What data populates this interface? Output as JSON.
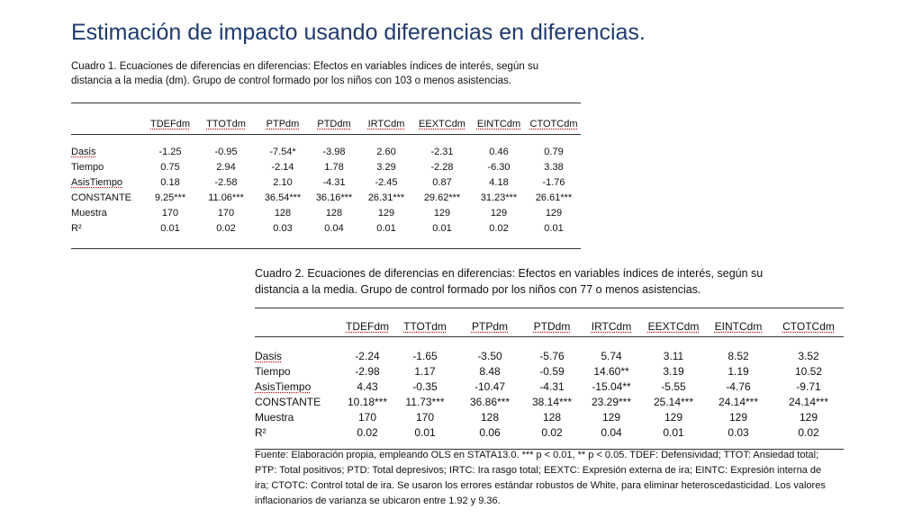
{
  "slide": {
    "title": "Estimación de impacto usando diferencias en diferencias."
  },
  "cuadro1": {
    "caption": "Cuadro 1. Ecuaciones de diferencias en diferencias: Efectos en variables índices de interés, según su\ndistancia a la media (dm). Grupo de control formado por los niños con 103 o menos asistencias.",
    "headers": [
      "",
      "TDEFdm",
      "TTOTdm",
      "PTPdm",
      "PTDdm",
      "IRTCdm",
      "EEXTCdm",
      "EINTCdm",
      "CTOTCdm"
    ],
    "rows": [
      [
        "Dasis",
        "-1.25",
        "-0.95",
        "-7.54*",
        "-3.98",
        "2.60",
        "-2.31",
        "0.46",
        "0.79"
      ],
      [
        "Tiempo",
        "0.75",
        "2.94",
        "-2.14",
        "1.78",
        "3.29",
        "-2.28",
        "-6.30",
        "3.38"
      ],
      [
        "AsisTiempo",
        "0.18",
        "-2.58",
        "2.10",
        "-4.31",
        "-2.45",
        "0.87",
        "4.18",
        "-1.76"
      ],
      [
        "CONSTANTE",
        "9.25***",
        "11.06***",
        "36.54***",
        "36.16***",
        "26.31***",
        "29.62***",
        "31.23***",
        "26.61***"
      ],
      [
        "Muestra",
        "170",
        "170",
        "128",
        "128",
        "129",
        "129",
        "129",
        "129"
      ],
      [
        "R²",
        "0.01",
        "0.02",
        "0.03",
        "0.04",
        "0.01",
        "0.01",
        "0.02",
        "0.01"
      ]
    ]
  },
  "cuadro2": {
    "caption": "Cuadro 2. Ecuaciones de diferencias en diferencias: Efectos en variables índices de interés, según su\ndistancia a la media. Grupo de control formado por los niños con 77 o menos asistencias.",
    "headers": [
      "",
      "TDEFdm",
      "TTOTdm",
      "PTPdm",
      "PTDdm",
      "IRTCdm",
      "EEXTCdm",
      "EINTCdm",
      "CTOTCdm"
    ],
    "rows": [
      [
        "Dasis",
        "-2.24",
        "-1.65",
        "-3.50",
        "-5.76",
        "5.74",
        "3.11",
        "8.52",
        "3.52"
      ],
      [
        "Tiempo",
        "-2.98",
        "1.17",
        "8.48",
        "-0.59",
        "14.60**",
        "3.19",
        "1.19",
        "10.52"
      ],
      [
        "AsisTiempo",
        "4.43",
        "-0.35",
        "-10.47",
        "-4.31",
        "-15.04**",
        "-5.55",
        "-4.76",
        "-9.71"
      ],
      [
        "CONSTANTE",
        "10.18***",
        "11.73***",
        "36.86***",
        "38.14***",
        "23.29***",
        "25.14***",
        "24.14***",
        "24.14***"
      ],
      [
        "Muestra",
        "170",
        "170",
        "128",
        "128",
        "129",
        "129",
        "129",
        "129"
      ],
      [
        "R²",
        "0.02",
        "0.01",
        "0.06",
        "0.02",
        "0.04",
        "0.01",
        "0.03",
        "0.02"
      ]
    ],
    "note": "Fuente: Elaboración propia, empleando OLS en STATA13.0. *** p < 0.01, ** p < 0.05. TDEF: Defensividad; TTOT: Ansiedad total; PTP: Total positivos; PTD: Total depresivos; IRTC: Ira rasgo total; EEXTC: Expresión externa de ira; EINTC: Expresión interna de ira; CTOTC: Control total de ira. Se usaron los errores estándar robustos de White, para eliminar heteroscedasticidad. Los valores inflacionarios de varianza se ubicaron entre 1.92 y 9.36."
  }
}
